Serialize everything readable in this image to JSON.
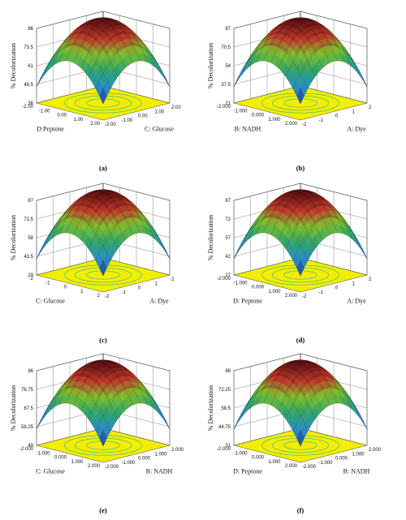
{
  "chart_data": [
    {
      "type": "surface3d",
      "panel_label": "(a)",
      "zlabel": "% Decolorization",
      "xlabel": "C: Glucose",
      "ylabel": "D:Peptone",
      "x_ticks": [
        "-2.00",
        "-1.00",
        "0.00",
        "1.00",
        "2.00"
      ],
      "y_ticks": [
        "-2.00",
        "-1.00",
        "0.00",
        "1.00",
        "2.00"
      ],
      "z_ticks": [
        "36",
        "48.5",
        "61",
        "73.5",
        "86"
      ],
      "zlim": [
        36,
        86
      ],
      "peak": 86,
      "corner_min": 36
    },
    {
      "type": "surface3d",
      "panel_label": "(b)",
      "zlabel": "% Decolorization",
      "xlabel": "A: Dye",
      "ylabel": "B: NADH",
      "x_ticks": [
        "-2",
        "-1",
        "0",
        "1",
        "2"
      ],
      "y_ticks": [
        "-2.000",
        "-1.000",
        "0.000",
        "1.000",
        "2.000"
      ],
      "z_ticks": [
        "21",
        "37.5",
        "54",
        "70.5",
        "87"
      ],
      "zlim": [
        21,
        87
      ],
      "peak": 87,
      "corner_min": 21
    },
    {
      "type": "surface3d",
      "panel_label": "(c)",
      "zlabel": "% Decolorization",
      "xlabel": "A: Dye",
      "ylabel": "C: Glucose",
      "x_ticks": [
        "-2",
        "-1",
        "0",
        "1",
        "2"
      ],
      "y_ticks": [
        "-2",
        "-1",
        "0",
        "1",
        "2"
      ],
      "z_ticks": [
        "29",
        "43.5",
        "58",
        "72.5",
        "87"
      ],
      "zlim": [
        29,
        87
      ],
      "peak": 87,
      "corner_min": 29
    },
    {
      "type": "surface3d",
      "panel_label": "(d)",
      "zlabel": "% Decolorization",
      "xlabel": "A: Dye",
      "ylabel": "D: Peptone",
      "x_ticks": [
        "-2",
        "-1",
        "0",
        "1",
        "2"
      ],
      "y_ticks": [
        "-2.000",
        "-1.000",
        "0.000",
        "1.000",
        "2.000"
      ],
      "z_ticks": [
        "27",
        "42",
        "57",
        "72",
        "87"
      ],
      "zlim": [
        27,
        87
      ],
      "peak": 87,
      "corner_min": 27
    },
    {
      "type": "surface3d",
      "panel_label": "(e)",
      "zlabel": "% Decolorization",
      "xlabel": "B: NADH",
      "ylabel": "C: Glucose",
      "x_ticks": [
        "-2.000",
        "-1.000",
        "0.000",
        "1.000",
        "2.000"
      ],
      "y_ticks": [
        "-2.000",
        "-1.000",
        "0.000",
        "1.000",
        "2.000"
      ],
      "z_ticks": [
        "49",
        "58.25",
        "67.5",
        "76.75",
        "86"
      ],
      "zlim": [
        49,
        86
      ],
      "peak": 86,
      "corner_min": 49
    },
    {
      "type": "surface3d",
      "panel_label": "(f)",
      "zlabel": "% Decolorization",
      "xlabel": "B: NADH",
      "ylabel": "D: Peptone",
      "x_ticks": [
        "-2.000",
        "-1.000",
        "0.000",
        "1.000",
        "2.000"
      ],
      "y_ticks": [
        "-2.000",
        "-1.000",
        "0.000",
        "1.000",
        "2.000"
      ],
      "z_ticks": [
        "31",
        "44.75",
        "58.5",
        "72.25",
        "86"
      ],
      "zlim": [
        31,
        86
      ],
      "peak": 86,
      "corner_min": 31
    }
  ]
}
